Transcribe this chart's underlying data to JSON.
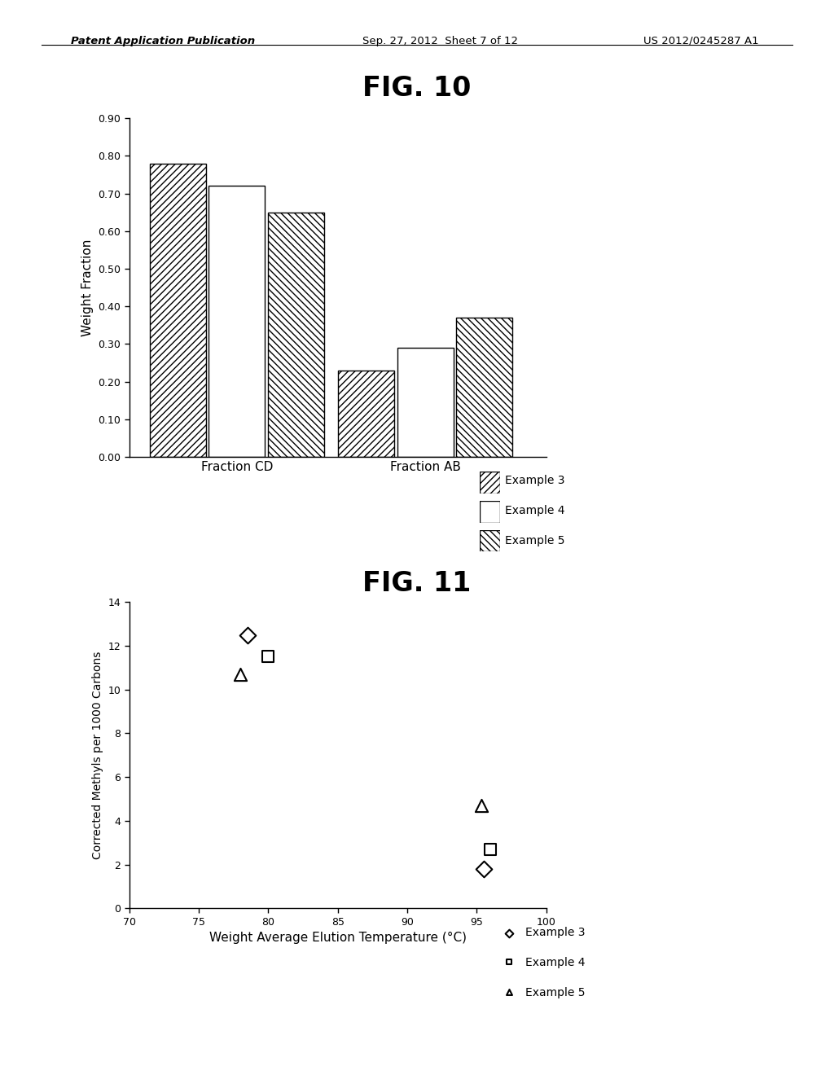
{
  "fig10_title": "FIG. 10",
  "fig11_title": "FIG. 11",
  "header_left": "Patent Application Publication",
  "header_mid": "Sep. 27, 2012  Sheet 7 of 12",
  "header_right": "US 2012/0245287 A1",
  "bar_categories": [
    "Fraction CD",
    "Fraction AB"
  ],
  "bar_width": 0.22,
  "bar_groups": {
    "Example 3": [
      0.78,
      0.23
    ],
    "Example 4": [
      0.72,
      0.29
    ],
    "Example 5": [
      0.65,
      0.37
    ]
  },
  "fig10_ylabel": "Weight Fraction",
  "fig10_ylim": [
    0.0,
    0.9
  ],
  "fig10_yticks": [
    0.0,
    0.1,
    0.2,
    0.3,
    0.4,
    0.5,
    0.6,
    0.7,
    0.8,
    0.9
  ],
  "fig10_legend": [
    "Example 3",
    "Example 4",
    "Example 5"
  ],
  "scatter_data": {
    "Example 3": {
      "x": [
        78.5,
        95.5
      ],
      "y": [
        12.5,
        1.8
      ]
    },
    "Example 4": {
      "x": [
        80.0,
        96.0
      ],
      "y": [
        11.5,
        2.7
      ]
    },
    "Example 5": {
      "x": [
        78.0,
        95.3
      ],
      "y": [
        10.7,
        4.7
      ]
    }
  },
  "fig11_xlabel": "Weight Average Elution Temperature (°C)",
  "fig11_ylabel": "Corrected Methyls per 1000 Carbons",
  "fig11_xlim": [
    70,
    100
  ],
  "fig11_ylim": [
    0,
    14
  ],
  "fig11_xticks": [
    70,
    75,
    80,
    85,
    90,
    95,
    100
  ],
  "fig11_yticks": [
    0,
    2,
    4,
    6,
    8,
    10,
    12,
    14
  ],
  "fig11_legend": [
    "Example 3",
    "Example 4",
    "Example 5"
  ],
  "background_color": "#ffffff",
  "text_color": "#000000"
}
